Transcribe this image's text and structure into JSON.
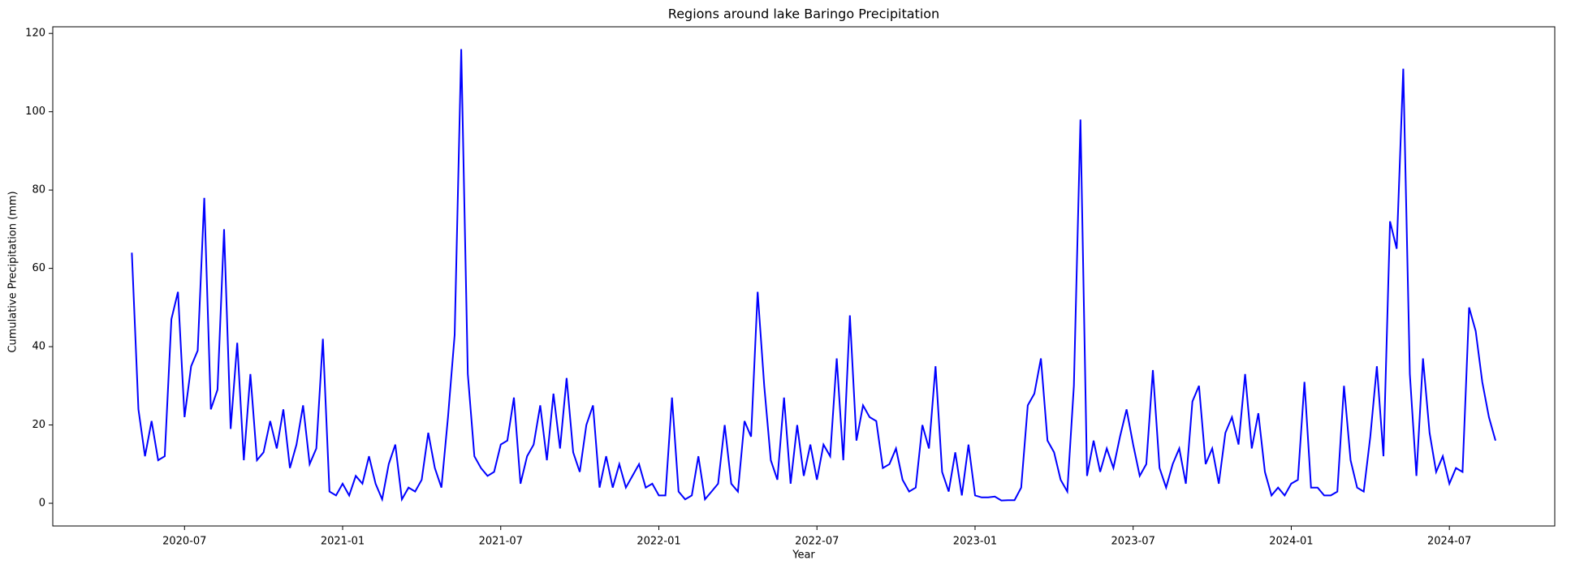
{
  "chart_data": {
    "type": "line",
    "title": "Regions around lake Baringo Precipitation",
    "x_label": "Year",
    "y_label": "Cumulative Precipitation (mm)",
    "x": [
      "2020-05",
      "2020-05",
      "2020-05",
      "2020-05",
      "2020-06",
      "2020-06",
      "2020-06",
      "2020-06",
      "2020-07",
      "2020-07",
      "2020-07",
      "2020-07",
      "2020-08",
      "2020-08",
      "2020-08",
      "2020-08",
      "2020-09",
      "2020-09",
      "2020-09",
      "2020-09",
      "2020-10",
      "2020-10",
      "2020-10",
      "2020-10",
      "2020-11",
      "2020-11",
      "2020-11",
      "2020-11",
      "2020-12",
      "2020-12",
      "2020-12",
      "2020-12",
      "2021-01",
      "2021-01",
      "2021-01",
      "2021-01",
      "2021-02",
      "2021-02",
      "2021-02",
      "2021-02",
      "2021-03",
      "2021-03",
      "2021-03",
      "2021-03",
      "2021-04",
      "2021-04",
      "2021-04",
      "2021-04",
      "2021-05",
      "2021-05",
      "2021-05",
      "2021-05",
      "2021-06",
      "2021-06",
      "2021-06",
      "2021-06",
      "2021-07",
      "2021-07",
      "2021-07",
      "2021-07",
      "2021-08",
      "2021-08",
      "2021-08",
      "2021-08",
      "2021-09",
      "2021-09",
      "2021-09",
      "2021-09",
      "2021-10",
      "2021-10",
      "2021-10",
      "2021-10",
      "2021-11",
      "2021-11",
      "2021-11",
      "2021-11",
      "2021-12",
      "2021-12",
      "2021-12",
      "2021-12",
      "2022-01",
      "2022-01",
      "2022-01",
      "2022-01",
      "2022-02",
      "2022-02",
      "2022-02",
      "2022-02",
      "2022-03",
      "2022-03",
      "2022-03",
      "2022-03",
      "2022-04",
      "2022-04",
      "2022-04",
      "2022-04",
      "2022-05",
      "2022-05",
      "2022-05",
      "2022-05",
      "2022-06",
      "2022-06",
      "2022-06",
      "2022-06",
      "2022-07",
      "2022-07",
      "2022-07",
      "2022-07",
      "2022-08",
      "2022-08",
      "2022-08",
      "2022-08",
      "2022-09",
      "2022-09",
      "2022-09",
      "2022-09",
      "2022-10",
      "2022-10",
      "2022-10",
      "2022-10",
      "2022-11",
      "2022-11",
      "2022-11",
      "2022-11",
      "2022-12",
      "2022-12",
      "2022-12",
      "2022-12",
      "2023-01",
      "2023-01",
      "2023-01",
      "2023-01",
      "2023-02",
      "2023-02",
      "2023-02",
      "2023-02",
      "2023-03",
      "2023-03",
      "2023-03",
      "2023-03",
      "2023-04",
      "2023-04",
      "2023-04",
      "2023-04",
      "2023-05",
      "2023-05",
      "2023-05",
      "2023-05",
      "2023-06",
      "2023-06",
      "2023-06",
      "2023-06",
      "2023-07",
      "2023-07",
      "2023-07",
      "2023-07",
      "2023-08",
      "2023-08",
      "2023-08",
      "2023-08",
      "2023-09",
      "2023-09",
      "2023-09",
      "2023-09",
      "2023-10",
      "2023-10",
      "2023-10",
      "2023-10",
      "2023-11",
      "2023-11",
      "2023-11",
      "2023-11",
      "2023-12",
      "2023-12",
      "2023-12",
      "2023-12",
      "2024-01",
      "2024-01",
      "2024-01",
      "2024-01",
      "2024-02",
      "2024-02",
      "2024-02",
      "2024-02",
      "2024-03",
      "2024-03",
      "2024-03",
      "2024-03",
      "2024-04",
      "2024-04",
      "2024-04",
      "2024-04",
      "2024-05",
      "2024-05",
      "2024-05",
      "2024-05",
      "2024-06",
      "2024-06",
      "2024-06",
      "2024-06",
      "2024-07",
      "2024-07",
      "2024-07",
      "2024-07",
      "2024-08",
      "2024-08",
      "2024-08",
      "2024-08"
    ],
    "series": [
      {
        "color": "#0000ff",
        "values": [
          64,
          24,
          12,
          21,
          11,
          12,
          47,
          54,
          22,
          35,
          39,
          78,
          24,
          29,
          70,
          19,
          41,
          11,
          33,
          11,
          13,
          21,
          14,
          24,
          9,
          15,
          25,
          10,
          14,
          42,
          3,
          2,
          5,
          2,
          7,
          5,
          12,
          5,
          1,
          10,
          15,
          1,
          4,
          3,
          6,
          18,
          9,
          4,
          22,
          43,
          116,
          33,
          12,
          9,
          7,
          8,
          15,
          16,
          27,
          5,
          12,
          15,
          25,
          11,
          28,
          14,
          32,
          13,
          8,
          20,
          25,
          4,
          12,
          4,
          10,
          4,
          7,
          10,
          4,
          5,
          2,
          2,
          27,
          3,
          1,
          2,
          12,
          1,
          3,
          5,
          20,
          5,
          3,
          21,
          17,
          54,
          30,
          11,
          6,
          27,
          5,
          20,
          7,
          15,
          6,
          15,
          12,
          37,
          11,
          48,
          16,
          25,
          22,
          21,
          9,
          10,
          14,
          6,
          3,
          4,
          20,
          14,
          35,
          8,
          3,
          13,
          2,
          15,
          2,
          1.5,
          1.5,
          1.7,
          0.7,
          0.8,
          0.8,
          4,
          25,
          28,
          37,
          16,
          13,
          6,
          3,
          30,
          98,
          7,
          16,
          8,
          14,
          9,
          17,
          24,
          15,
          7,
          10,
          34,
          9,
          4,
          10,
          14,
          5,
          26,
          30,
          10,
          14,
          5,
          18,
          22,
          15,
          33,
          14,
          23,
          8,
          2,
          4,
          2,
          5,
          6,
          31,
          4,
          4,
          2,
          2,
          3,
          30,
          11,
          4,
          3,
          17,
          35,
          12,
          72,
          65,
          111,
          33,
          7,
          37,
          18,
          8,
          12,
          5,
          9,
          8,
          50,
          44,
          31,
          22,
          16
        ]
      }
    ],
    "xlim": [
      "2020-02",
      "2024-11"
    ],
    "xticks": [
      "2020-07",
      "2021-01",
      "2021-07",
      "2022-01",
      "2022-07",
      "2023-01",
      "2023-07",
      "2024-01",
      "2024-07"
    ],
    "ylim": [
      -5.8,
      121.7
    ],
    "yticks": [
      0,
      20,
      40,
      60,
      80,
      100,
      120
    ]
  }
}
